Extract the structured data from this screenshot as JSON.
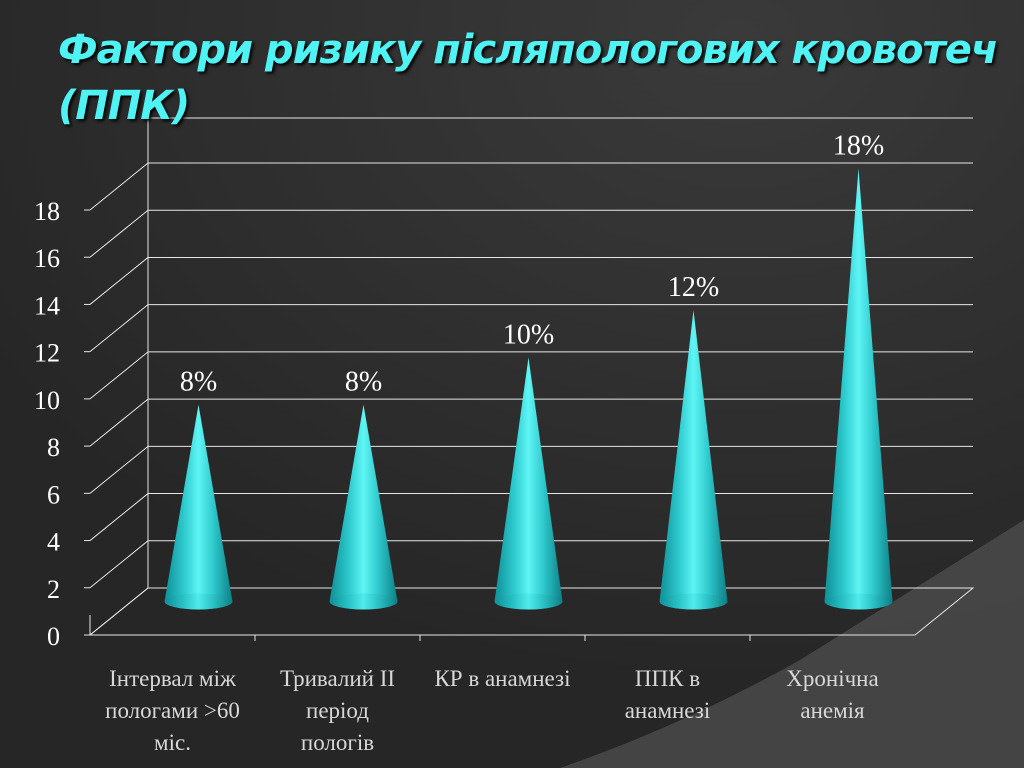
{
  "slide": {
    "title": "Фактори ризику післяпологових кровотеч (ППК)"
  },
  "colors": {
    "background": "#2d2d2d",
    "title": "#4ff3f3",
    "cone": "#2ed3d3",
    "text": "#ffffff"
  },
  "chart_data": {
    "type": "bar",
    "bar_shape": "cone",
    "title": "",
    "xlabel": "",
    "ylabel": "",
    "ylim": [
      0,
      18
    ],
    "yticks": [
      0,
      2,
      4,
      6,
      8,
      10,
      12,
      14,
      16,
      18
    ],
    "grid": true,
    "legend": "none",
    "categories": [
      "Інтервал між пологами >60 міс.",
      "Тривалий ІІ період пологів",
      "КР в анамнезі",
      "ППК в анамнезі",
      "Хронічна анемія"
    ],
    "values": [
      8,
      8,
      10,
      12,
      18
    ],
    "data_labels": [
      "8%",
      "8%",
      "10%",
      "12%",
      "18%"
    ]
  }
}
